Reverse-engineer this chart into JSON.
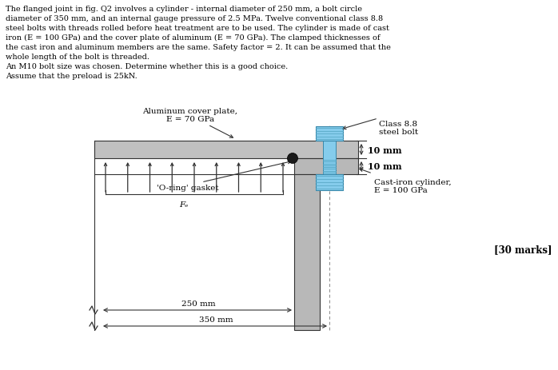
{
  "title_text": "The flanged joint in fig. Q2 involves a cylinder - internal diameter of 250 mm, a bolt circle\ndiameter of 350 mm, and an internal gauge pressure of 2.5 MPa. Twelve conventional class 8.8\nsteel bolts with threads rolled before heat treatment are to be used. The cylinder is made of cast\niron (E = 100 GPa) and the cover plate of aluminum (E = 70 GPa). The clamped thicknesses of\nthe cast iron and aluminum members are the same. Safety factor = 2. It can be assumed that the\nwhole length of the bolt is threaded.\nAn M10 bolt size was chosen. Determine whether this is a good choice.\nAssume that the preload is 25kN.",
  "marks_text": "[30 marks]",
  "label_aluminum": "Aluminum cover plate,\nE = 70 GPa",
  "label_steel_bolt": "Class 8.8\nsteel bolt",
  "label_10mm_top": "10 mm",
  "label_10mm_bot": "10 mm",
  "label_Fz": "Fₑ",
  "label_oring": "'O-ring' gasket",
  "label_cast_iron": "Cast-iron cylinder,\nE = 100 GPa",
  "label_250mm": "250 mm",
  "label_350mm": "350 mm",
  "color_al_plate": "#c0c0c0",
  "color_ci_flange": "#b8b8b8",
  "color_bolt_light": "#85ccec",
  "color_bolt_dark": "#5aaac8",
  "color_bolt_edge": "#3888aa",
  "color_oring": "#1a1a1a",
  "color_bg": "#ffffff",
  "color_text": "#000000",
  "color_line": "#333333"
}
